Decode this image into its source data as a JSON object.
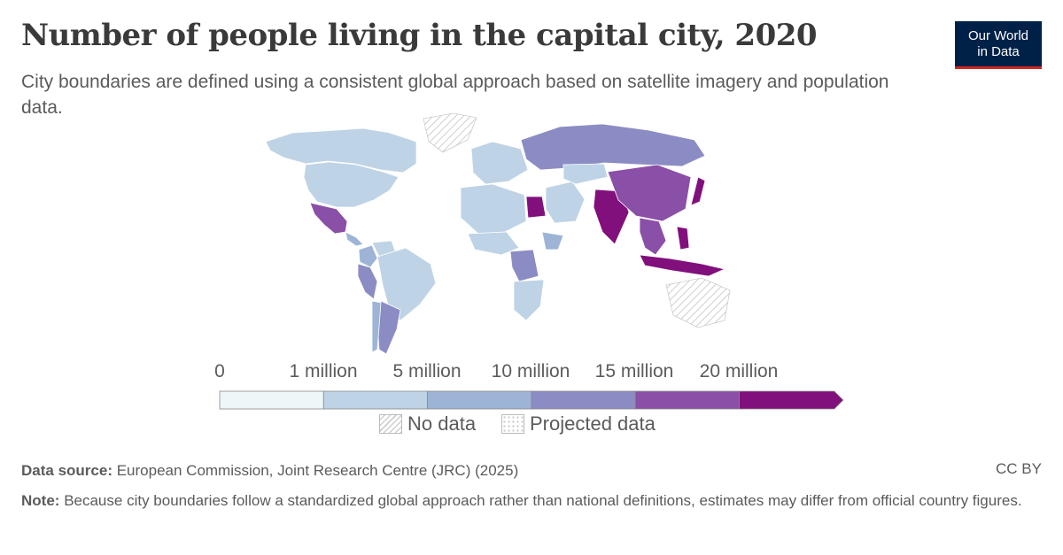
{
  "header": {
    "title": "Number of people living in the capital city, 2020",
    "subtitle": "City boundaries are defined using a consistent global approach based on satellite imagery and population data."
  },
  "logo": {
    "line1": "Our World",
    "line2": "in Data",
    "bg_color": "#002147",
    "accent_color": "#ce261e"
  },
  "legend": {
    "ticks": [
      "0",
      "1 million",
      "5 million",
      "10 million",
      "15 million",
      "20 million"
    ],
    "colors": [
      "#eef6f8",
      "#bfd3e6",
      "#9db4d6",
      "#8c8cc4",
      "#8a4fa6",
      "#810f7c"
    ],
    "no_data_label": "No data",
    "projected_label": "Projected data"
  },
  "footer": {
    "source_label": "Data source:",
    "source_text": "European Commission, Joint Research Centre (JRC) (2025)",
    "license": "CC BY",
    "note_label": "Note:",
    "note_text": "Because city boundaries follow a standardized global approach rather than national definitions, estimates may differ from official country figures."
  },
  "map": {
    "projection": "Robinson-like world map",
    "regions": [
      {
        "name": "Canada",
        "bin": 1
      },
      {
        "name": "United States",
        "bin": 1
      },
      {
        "name": "Mexico",
        "bin": 4
      },
      {
        "name": "Central America",
        "bin": 2
      },
      {
        "name": "Colombia",
        "bin": 2
      },
      {
        "name": "Venezuela",
        "bin": 1
      },
      {
        "name": "Peru",
        "bin": 3
      },
      {
        "name": "Brazil",
        "bin": 1
      },
      {
        "name": "Argentina",
        "bin": 3
      },
      {
        "name": "Chile",
        "bin": 2
      },
      {
        "name": "Greenland",
        "bin": "no_data"
      },
      {
        "name": "Europe",
        "bin": 1
      },
      {
        "name": "Russia",
        "bin": 3
      },
      {
        "name": "North Africa",
        "bin": 1
      },
      {
        "name": "Egypt",
        "bin": 5
      },
      {
        "name": "West Africa",
        "bin": 1
      },
      {
        "name": "DR Congo",
        "bin": 3
      },
      {
        "name": "Ethiopia",
        "bin": 2
      },
      {
        "name": "Southern Africa",
        "bin": 1
      },
      {
        "name": "Middle East",
        "bin": 1
      },
      {
        "name": "Central Asia",
        "bin": 1
      },
      {
        "name": "India",
        "bin": 5
      },
      {
        "name": "China",
        "bin": 4
      },
      {
        "name": "Japan",
        "bin": 5
      },
      {
        "name": "Southeast Asia",
        "bin": 4
      },
      {
        "name": "Indonesia",
        "bin": 5
      },
      {
        "name": "Philippines",
        "bin": 5
      },
      {
        "name": "Australia",
        "bin": "no_data"
      }
    ]
  }
}
